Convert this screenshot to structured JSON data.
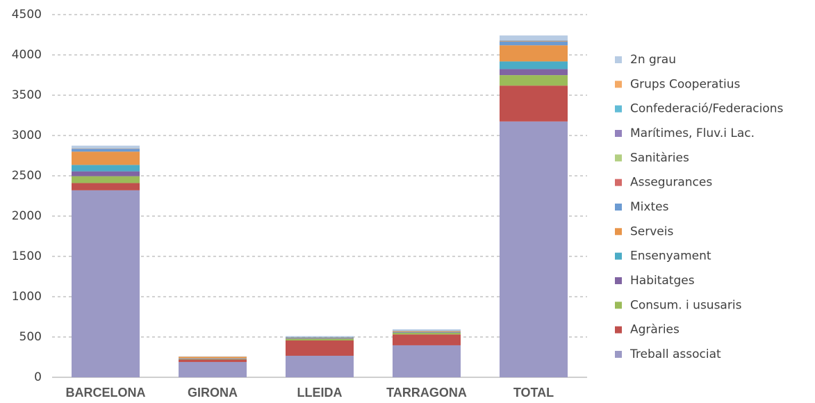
{
  "chart_data": {
    "type": "stacked-bar",
    "categories": [
      "BARCELONA",
      "GIRONA",
      "LLEIDA",
      "TARRAGONA",
      "TOTAL"
    ],
    "series": [
      {
        "name": "Treball associat",
        "color": "#9b99c5",
        "values": [
          2320,
          190,
          267,
          397,
          3174
        ]
      },
      {
        "name": "Agràries",
        "color": "#c0504d",
        "values": [
          90,
          30,
          190,
          135,
          445
        ]
      },
      {
        "name": "Consum. i ususaris",
        "color": "#9bbb59",
        "values": [
          85,
          5,
          20,
          20,
          130
        ]
      },
      {
        "name": "Habitatges",
        "color": "#8064a2",
        "values": [
          60,
          5,
          5,
          5,
          75
        ]
      },
      {
        "name": "Ensenyament",
        "color": "#4bacc6",
        "values": [
          80,
          5,
          5,
          5,
          95
        ]
      },
      {
        "name": "Serveis",
        "color": "#e8954a",
        "values": [
          165,
          20,
          5,
          10,
          200
        ]
      },
      {
        "name": "Mixtes",
        "color": "#6c9bd2",
        "values": [
          35,
          0,
          5,
          5,
          45
        ]
      },
      {
        "name": "Assegurances",
        "color": "#d46a68",
        "values": [
          2,
          0,
          1,
          1,
          4
        ]
      },
      {
        "name": "Sanitàries",
        "color": "#b3cf82",
        "values": [
          2,
          0,
          1,
          1,
          4
        ]
      },
      {
        "name": "Marítimes, Fluv.i Lac.",
        "color": "#9382bd",
        "values": [
          2,
          0,
          1,
          1,
          4
        ]
      },
      {
        "name": "Confederació/Federacions",
        "color": "#62bcd6",
        "values": [
          2,
          0,
          1,
          1,
          4
        ]
      },
      {
        "name": "Grups Cooperatius",
        "color": "#f4aa66",
        "values": [
          1,
          0,
          0,
          0,
          1
        ]
      },
      {
        "name": "2n grau",
        "color": "#b8cce4",
        "values": [
          30,
          5,
          10,
          15,
          60
        ]
      }
    ],
    "ylim": [
      0,
      4500
    ],
    "yticks": [
      0,
      500,
      1000,
      1500,
      2000,
      2500,
      3000,
      3500,
      4000,
      4500
    ],
    "grid": true,
    "legend": "right"
  }
}
